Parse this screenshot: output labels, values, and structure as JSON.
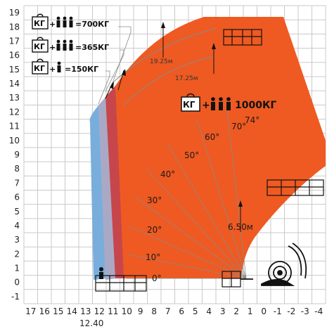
{
  "colors": {
    "grid": "#c9c9c9",
    "envelope_1000": "#ee5a22",
    "envelope_700": "#c7464c",
    "envelope_365": "#a9a9c6",
    "envelope_150": "#79aedc",
    "text": "#111111"
  },
  "axes": {
    "x_ticks": [
      "17",
      "16",
      "15",
      "14",
      "13",
      "12",
      "11",
      "10",
      "9",
      "8",
      "7",
      "6",
      "5",
      "4",
      "3",
      "2",
      "1",
      "0",
      "-1",
      "-2",
      "-3",
      "-4"
    ],
    "y_ticks": [
      "19",
      "18",
      "17",
      "16",
      "15",
      "14",
      "13",
      "12",
      "11",
      "10",
      "9",
      "8",
      "7",
      "6",
      "5",
      "4",
      "3",
      "2",
      "1",
      "0",
      "-1"
    ],
    "x_extra_label": "12.40"
  },
  "legend": [
    {
      "people": 3,
      "label": "=700КГ"
    },
    {
      "people": 3,
      "label": "=365КГ"
    },
    {
      "people": 1,
      "label": "=150КГ"
    }
  ],
  "kg_icon_text": "КГ",
  "main_label": "1000КГ",
  "dimension_labels": [
    "19.25м",
    "17.25м",
    "6.50м"
  ],
  "angle_labels": [
    "0°",
    "10°",
    "20°",
    "30°",
    "40°",
    "50°",
    "60°",
    "70°",
    "74°"
  ],
  "icons": [
    "platform-icon",
    "person-icon",
    "weight-kg-icon",
    "telehandler-base-icon",
    "arrow-up-icon"
  ]
}
